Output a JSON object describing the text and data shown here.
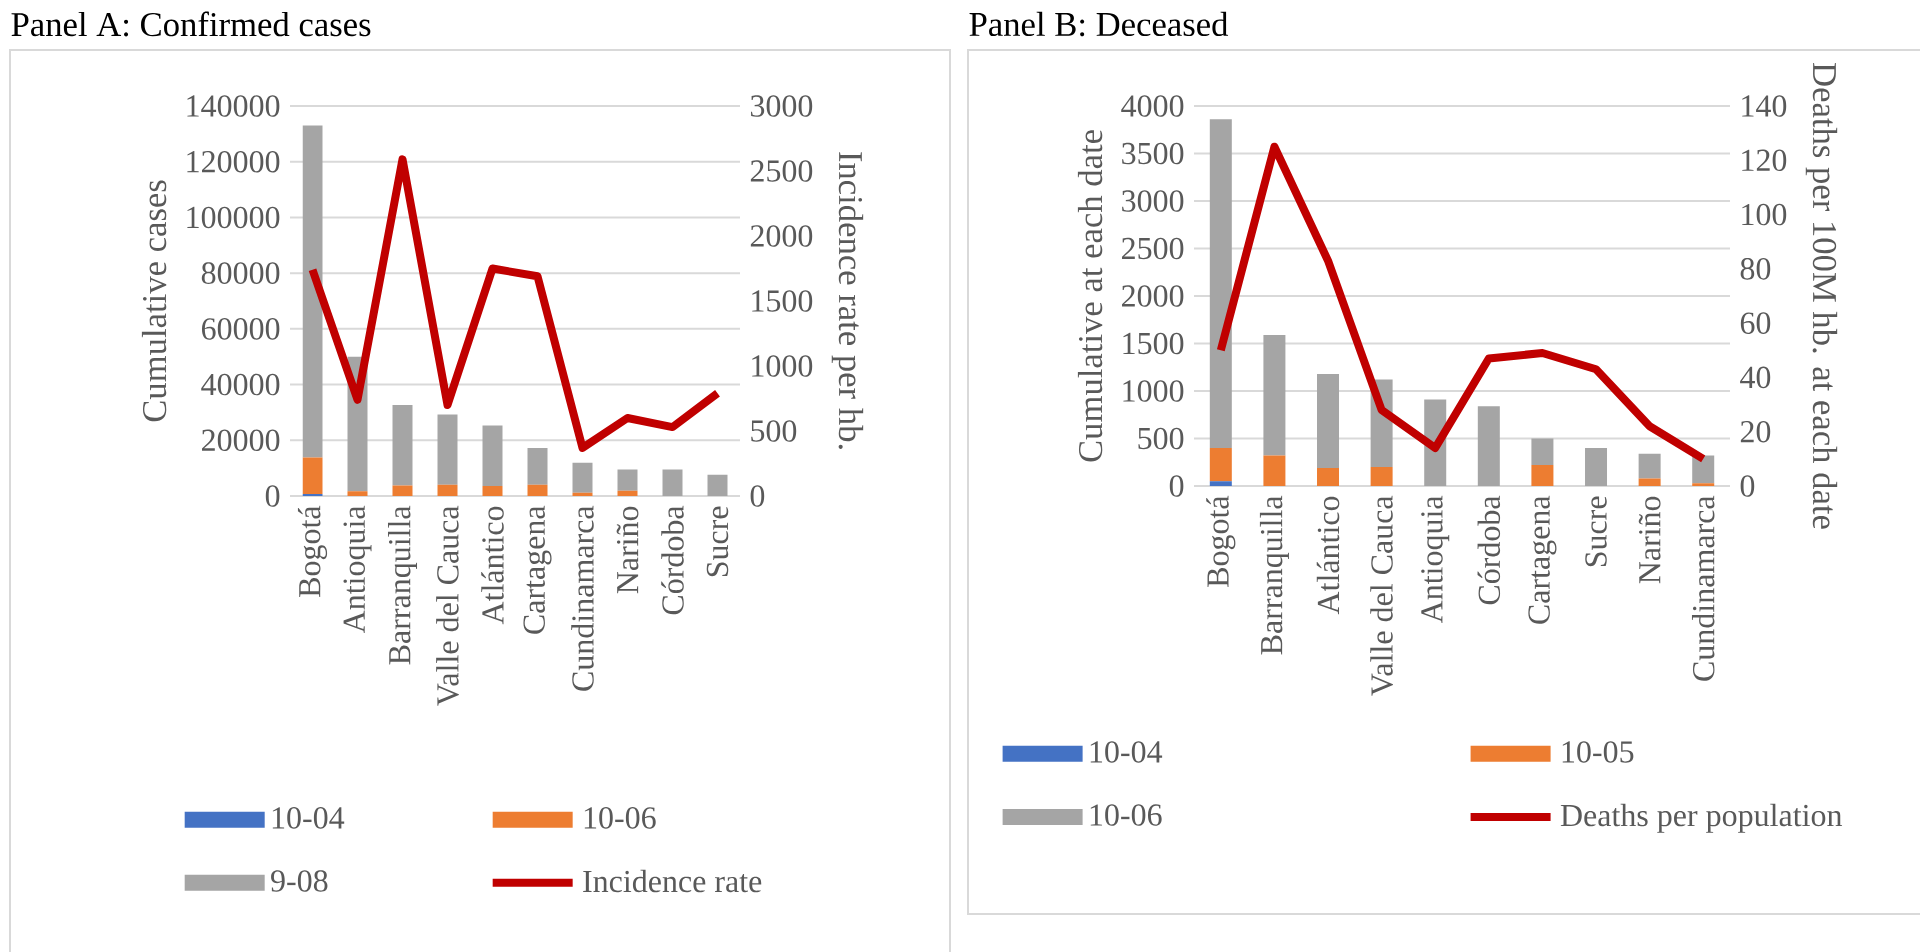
{
  "chart_data": [
    {
      "type": "bar",
      "title": "Panel A: Confirmed cases",
      "ylabel": "Cumulative cases",
      "y2label": "Incidence rate per hb.",
      "categories": [
        "Bogotá",
        "Antioquia",
        "Barranquilla",
        "Valle del Cauca",
        "Atlántico",
        "Cartagena",
        "Cundinamarca",
        "Nariño",
        "Córdoba",
        "Sucre"
      ],
      "stacked": true,
      "series": [
        {
          "name": "10-04",
          "color": "#4472c4",
          "values": [
            700,
            0,
            0,
            0,
            0,
            0,
            0,
            0,
            0,
            0
          ]
        },
        {
          "name": "10-06",
          "color": "#ed7d31",
          "values": [
            13100,
            1700,
            3800,
            4000,
            3600,
            4000,
            1200,
            1900,
            0,
            0
          ]
        },
        {
          "name": "9-08",
          "color": "#a5a5a5",
          "values": [
            119200,
            48300,
            28900,
            25300,
            21700,
            13200,
            10700,
            7600,
            9500,
            7600
          ]
        },
        {
          "name": "Incidence rate",
          "type": "line",
          "axis": "y2",
          "color": "#c00000",
          "values": [
            1740,
            740,
            2590,
            700,
            1750,
            1690,
            370,
            600,
            530,
            790
          ]
        }
      ],
      "ylim": [
        0,
        140000
      ],
      "yticks": [
        0,
        20000,
        40000,
        60000,
        80000,
        100000,
        120000,
        140000
      ],
      "y2lim": [
        0,
        3000
      ],
      "y2ticks": [
        0,
        500,
        1000,
        1500,
        2000,
        2500,
        3000
      ],
      "grid": "y",
      "legend": "bottom"
    },
    {
      "type": "bar",
      "title": "Panel B: Deceased",
      "ylabel": "Cumulative at each date",
      "y2label": "Deaths per 100M hb. at each date",
      "categories": [
        "Bogotá",
        "Barranquilla",
        "Atlántico",
        "Valle del Cauca",
        "Antioquia",
        "Córdoba",
        "Cartagena",
        "Sucre",
        "Nariño",
        "Cundinamarca"
      ],
      "stacked": true,
      "series": [
        {
          "name": "10-04",
          "color": "#4472c4",
          "values": [
            50,
            0,
            0,
            0,
            0,
            0,
            0,
            0,
            0,
            0
          ]
        },
        {
          "name": "10-05",
          "color": "#ed7d31",
          "values": [
            350,
            320,
            190,
            200,
            0,
            0,
            220,
            0,
            80,
            30
          ]
        },
        {
          "name": "10-06",
          "color": "#a5a5a5",
          "values": [
            3460,
            1270,
            990,
            920,
            910,
            840,
            280,
            400,
            260,
            290
          ]
        },
        {
          "name": "Deaths per population",
          "type": "line",
          "axis": "y2",
          "color": "#c00000",
          "values": [
            50,
            125,
            83,
            28,
            14,
            47,
            49,
            43,
            22,
            10
          ]
        }
      ],
      "ylim": [
        0,
        4000
      ],
      "yticks": [
        0,
        500,
        1000,
        1500,
        2000,
        2500,
        3000,
        3500,
        4000
      ],
      "y2lim": [
        0,
        140
      ],
      "y2ticks": [
        0,
        20,
        40,
        60,
        80,
        100,
        120,
        140
      ],
      "grid": "y",
      "legend": "bottom"
    }
  ]
}
